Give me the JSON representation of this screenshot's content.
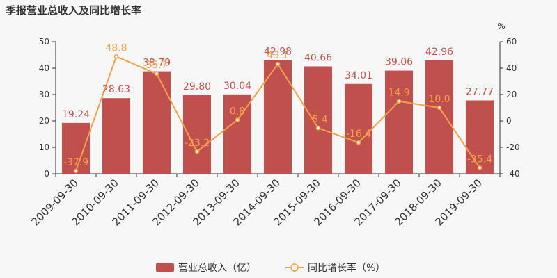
{
  "chart_data": {
    "type": "bar+line",
    "title": "季报营业总收入及同比增长率",
    "categories": [
      "2009-09-30",
      "2010-09-30",
      "2011-09-30",
      "2012-09-30",
      "2013-09-30",
      "2014-09-30",
      "2015-09-30",
      "2016-09-30",
      "2017-09-30",
      "2018-09-30",
      "2019-09-30"
    ],
    "series": [
      {
        "name": "营业总收入（亿）",
        "type": "bar",
        "axis": "left",
        "color": "#c0504d",
        "values": [
          19.24,
          28.63,
          38.79,
          29.8,
          30.04,
          42.98,
          40.66,
          34.01,
          39.06,
          42.96,
          27.77
        ],
        "labels": [
          "19.24",
          "28.63",
          "38.79",
          "29.80",
          "30.04",
          "42.98",
          "40.66",
          "34.01",
          "39.06",
          "42.96",
          "27.77"
        ]
      },
      {
        "name": "同比增长率（%）",
        "type": "line",
        "axis": "right",
        "color": "#f4a04b",
        "values": [
          -37.9,
          48.8,
          35.7,
          -23.2,
          0.8,
          43.1,
          -5.4,
          -16.4,
          14.9,
          10.0,
          -35.4
        ],
        "labels": [
          "-37.9",
          "48.8",
          "35.7",
          "-23.2",
          "0.8",
          "43.1",
          "-5.4",
          "-16.4",
          "14.9",
          "10.0",
          "-35.4"
        ]
      }
    ],
    "y_left": {
      "min": 0,
      "max": 50,
      "ticks": [
        "0",
        "10",
        "20",
        "30",
        "40",
        "50"
      ]
    },
    "y_right": {
      "min": -40,
      "max": 60,
      "ticks": [
        "-40",
        "-20",
        "0",
        "20",
        "40",
        "60"
      ],
      "unit": "%"
    },
    "grid": false,
    "legend_position": "bottom"
  }
}
